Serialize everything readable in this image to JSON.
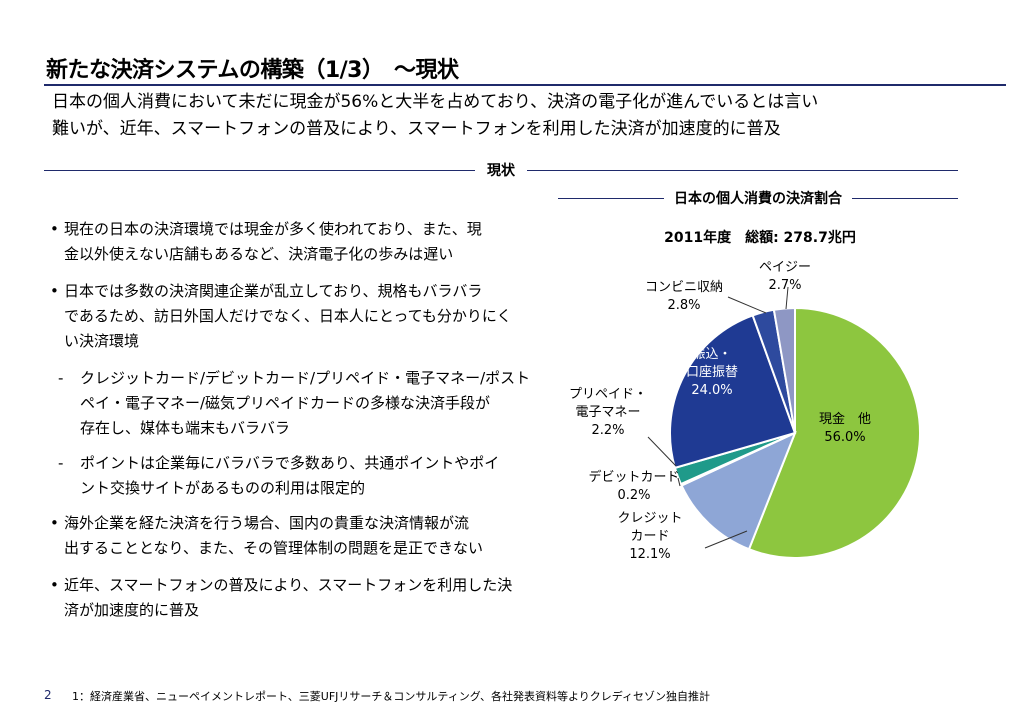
{
  "title": "新たな決済システムの構築（1/3）　～現状",
  "lead": [
    "日本の個人消費において未だに現金が56%と大半を占めており、決済の電子化が進んでいるとは言い",
    "難いが、近年、スマートフォンの普及により、スマートフォンを利用した決済が加速度的に普及"
  ],
  "section_label": "現状",
  "bullets": [
    {
      "mark": "•",
      "lines": [
        "現在の日本の決済環境では現金が多く使われており、また、現",
        "金以外使えない店舗もあるなど、決済電子化の歩みは遅い"
      ]
    },
    {
      "mark": "•",
      "lines": [
        "日本では多数の決済関連企業が乱立しており、規格もバラバラ",
        "であるため、訪日外国人だけでなく、日本人にとっても分かりにく",
        "い決済環境"
      ],
      "subs": [
        {
          "mark": "-",
          "lines": [
            "クレジットカード/デビットカード/プリペイド・電子マネー/ポスト",
            "ペイ・電子マネー/磁気プリペイドカードの多様な決済手段が",
            "存在し、媒体も端末もバラバラ"
          ]
        },
        {
          "mark": "-",
          "lines": [
            "ポイントは企業毎にバラバラで多数あり、共通ポイントやポイ",
            "ント交換サイトがあるものの利用は限定的"
          ]
        }
      ]
    },
    {
      "mark": "•",
      "lines": [
        "海外企業を経た決済を行う場合、国内の貴重な決済情報が流",
        "出することとなり、また、その管理体制の問題を是正できない"
      ]
    },
    {
      "mark": "•",
      "lines": [
        "近年、スマートフォンの普及により、スマートフォンを利用した決",
        "済が加速度的に普及"
      ]
    }
  ],
  "chart_data": {
    "type": "pie",
    "title": "日本の個人消費の決済割合",
    "subtitle": "2011年度　総額: 278.7兆円",
    "slices": [
      {
        "label": [
          "現金　他"
        ],
        "value": 56.0,
        "value_text": "56.0%",
        "color": "#8dc63f",
        "label_color": "#000000"
      },
      {
        "label": [
          "クレジット",
          "カード"
        ],
        "value": 12.1,
        "value_text": "12.1%",
        "color": "#8ea6d6",
        "label_color": "#000000"
      },
      {
        "label": [
          "デビットカード"
        ],
        "value": 0.2,
        "value_text": "0.2%",
        "color": "#6a7fb5",
        "label_color": "#000000"
      },
      {
        "label": [
          "プリペイド・",
          "電子マネー"
        ],
        "value": 2.2,
        "value_text": "2.2%",
        "color": "#1f9a8a",
        "label_color": "#000000"
      },
      {
        "label": [
          "振込・",
          "口座振替"
        ],
        "value": 24.0,
        "value_text": "24.0%",
        "color": "#1f3a93",
        "label_color": "#ffffff"
      },
      {
        "label": [
          "コンビニ収納"
        ],
        "value": 2.8,
        "value_text": "2.8%",
        "color": "#2e4a9e",
        "label_color": "#000000"
      },
      {
        "label": [
          "ペイジー"
        ],
        "value": 2.7,
        "value_text": "2.7%",
        "color": "#8e97c4",
        "label_color": "#000000"
      }
    ]
  },
  "footer": {
    "page": "2",
    "note": "1：経済産業省、ニューペイメントレポート、三菱UFJリサーチ＆コンサルティング、各社発表資料等よりクレディセゾン独自推計"
  }
}
